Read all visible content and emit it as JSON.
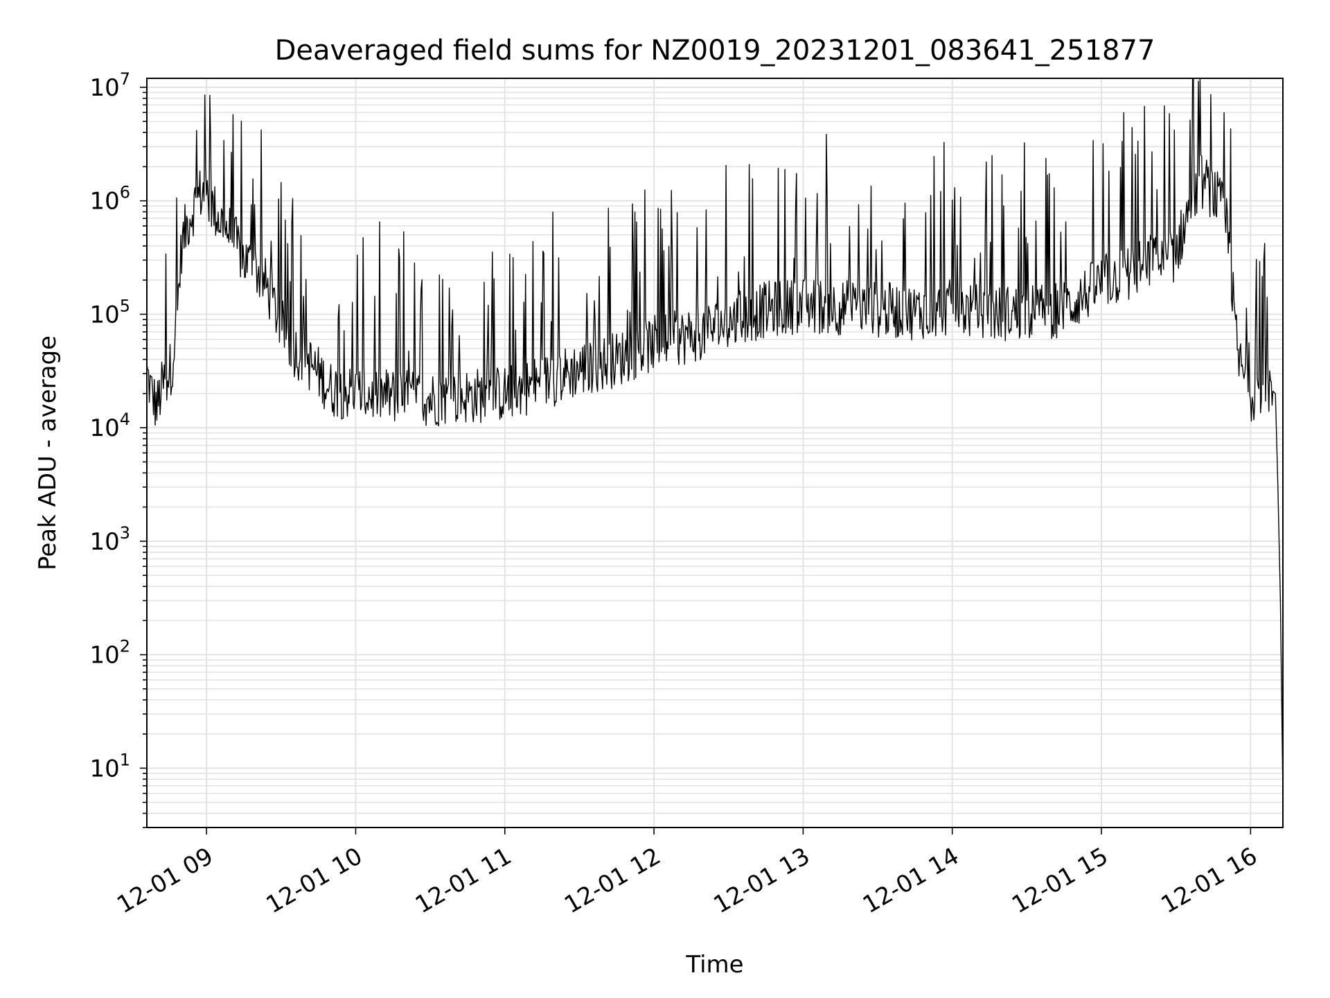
{
  "chart_data": {
    "type": "line",
    "title": "Deaveraged field sums for NZ0019_20231201_083641_251877",
    "xlabel": "Time",
    "ylabel": "Peak ADU - average",
    "yscale": "log",
    "ylim": [
      3,
      12000000
    ],
    "xlim": [
      "2023-12-01 08:36",
      "2023-12-01 16:13"
    ],
    "grid": true,
    "line_color": "#000000",
    "grid_color": "#e3e3e3",
    "x_ticks": [
      {
        "value": "2023-12-01 09:00",
        "label": "12-01 09"
      },
      {
        "value": "2023-12-01 10:00",
        "label": "12-01 10"
      },
      {
        "value": "2023-12-01 11:00",
        "label": "12-01 11"
      },
      {
        "value": "2023-12-01 12:00",
        "label": "12-01 12"
      },
      {
        "value": "2023-12-01 13:00",
        "label": "12-01 13"
      },
      {
        "value": "2023-12-01 14:00",
        "label": "12-01 14"
      },
      {
        "value": "2023-12-01 15:00",
        "label": "12-01 15"
      },
      {
        "value": "2023-12-01 16:00",
        "label": "12-01 16"
      }
    ],
    "y_ticks": [
      {
        "value": 10,
        "base": "10",
        "exp": "1"
      },
      {
        "value": 100,
        "base": "10",
        "exp": "2"
      },
      {
        "value": 1000,
        "base": "10",
        "exp": "3"
      },
      {
        "value": 10000,
        "base": "10",
        "exp": "4"
      },
      {
        "value": 100000,
        "base": "10",
        "exp": "5"
      },
      {
        "value": 1000000,
        "base": "10",
        "exp": "6"
      },
      {
        "value": 10000000,
        "base": "10",
        "exp": "7"
      }
    ],
    "series": [
      {
        "x": [
          "2023-12-01 08:36",
          "2023-12-01 08:38",
          "2023-12-01 08:40",
          "2023-12-01 08:42",
          "2023-12-01 08:44",
          "2023-12-01 08:46",
          "2023-12-01 08:48",
          "2023-12-01 08:50",
          "2023-12-01 08:52",
          "2023-12-01 08:54",
          "2023-12-01 08:56",
          "2023-12-01 08:58",
          "2023-12-01 09:00",
          "2023-12-01 09:05",
          "2023-12-01 09:10",
          "2023-12-01 09:15",
          "2023-12-01 09:20",
          "2023-12-01 09:25",
          "2023-12-01 09:30",
          "2023-12-01 09:35",
          "2023-12-01 09:40",
          "2023-12-01 09:45",
          "2023-12-01 09:50",
          "2023-12-01 10:00",
          "2023-12-01 10:15",
          "2023-12-01 10:30",
          "2023-12-01 10:45",
          "2023-12-01 11:00",
          "2023-12-01 11:15",
          "2023-12-01 11:30",
          "2023-12-01 11:45",
          "2023-12-01 12:00",
          "2023-12-01 12:15",
          "2023-12-01 12:30",
          "2023-12-01 12:45",
          "2023-12-01 13:00",
          "2023-12-01 13:15",
          "2023-12-01 13:30",
          "2023-12-01 13:45",
          "2023-12-01 14:00",
          "2023-12-01 14:15",
          "2023-12-01 14:30",
          "2023-12-01 14:45",
          "2023-12-01 15:00",
          "2023-12-01 15:15",
          "2023-12-01 15:20",
          "2023-12-01 15:25",
          "2023-12-01 15:30",
          "2023-12-01 15:35",
          "2023-12-01 15:40",
          "2023-12-01 15:45",
          "2023-12-01 15:48",
          "2023-12-01 15:50",
          "2023-12-01 15:52",
          "2023-12-01 15:55",
          "2023-12-01 16:00",
          "2023-12-01 16:05",
          "2023-12-01 16:08",
          "2023-12-01 16:10",
          "2023-12-01 16:11",
          "2023-12-01 16:12",
          "2023-12-01 16:13"
        ],
        "values": [
          30000,
          20000,
          15000,
          22000,
          28000,
          35000,
          90000,
          400000,
          600000,
          800000,
          1000000,
          1200000,
          1100000,
          700000,
          500000,
          300000,
          250000,
          160000,
          80000,
          50000,
          40000,
          30000,
          22000,
          20000,
          19000,
          18000,
          19000,
          20000,
          25000,
          33000,
          40000,
          55000,
          65000,
          85000,
          110000,
          120000,
          115000,
          110000,
          105000,
          115000,
          100000,
          105000,
          110000,
          190000,
          250000,
          300000,
          280000,
          350000,
          800000,
          1500000,
          1200000,
          900000,
          700000,
          250000,
          40000,
          20000,
          23000,
          22000,
          20000,
          3000,
          300,
          6
        ]
      }
    ]
  }
}
